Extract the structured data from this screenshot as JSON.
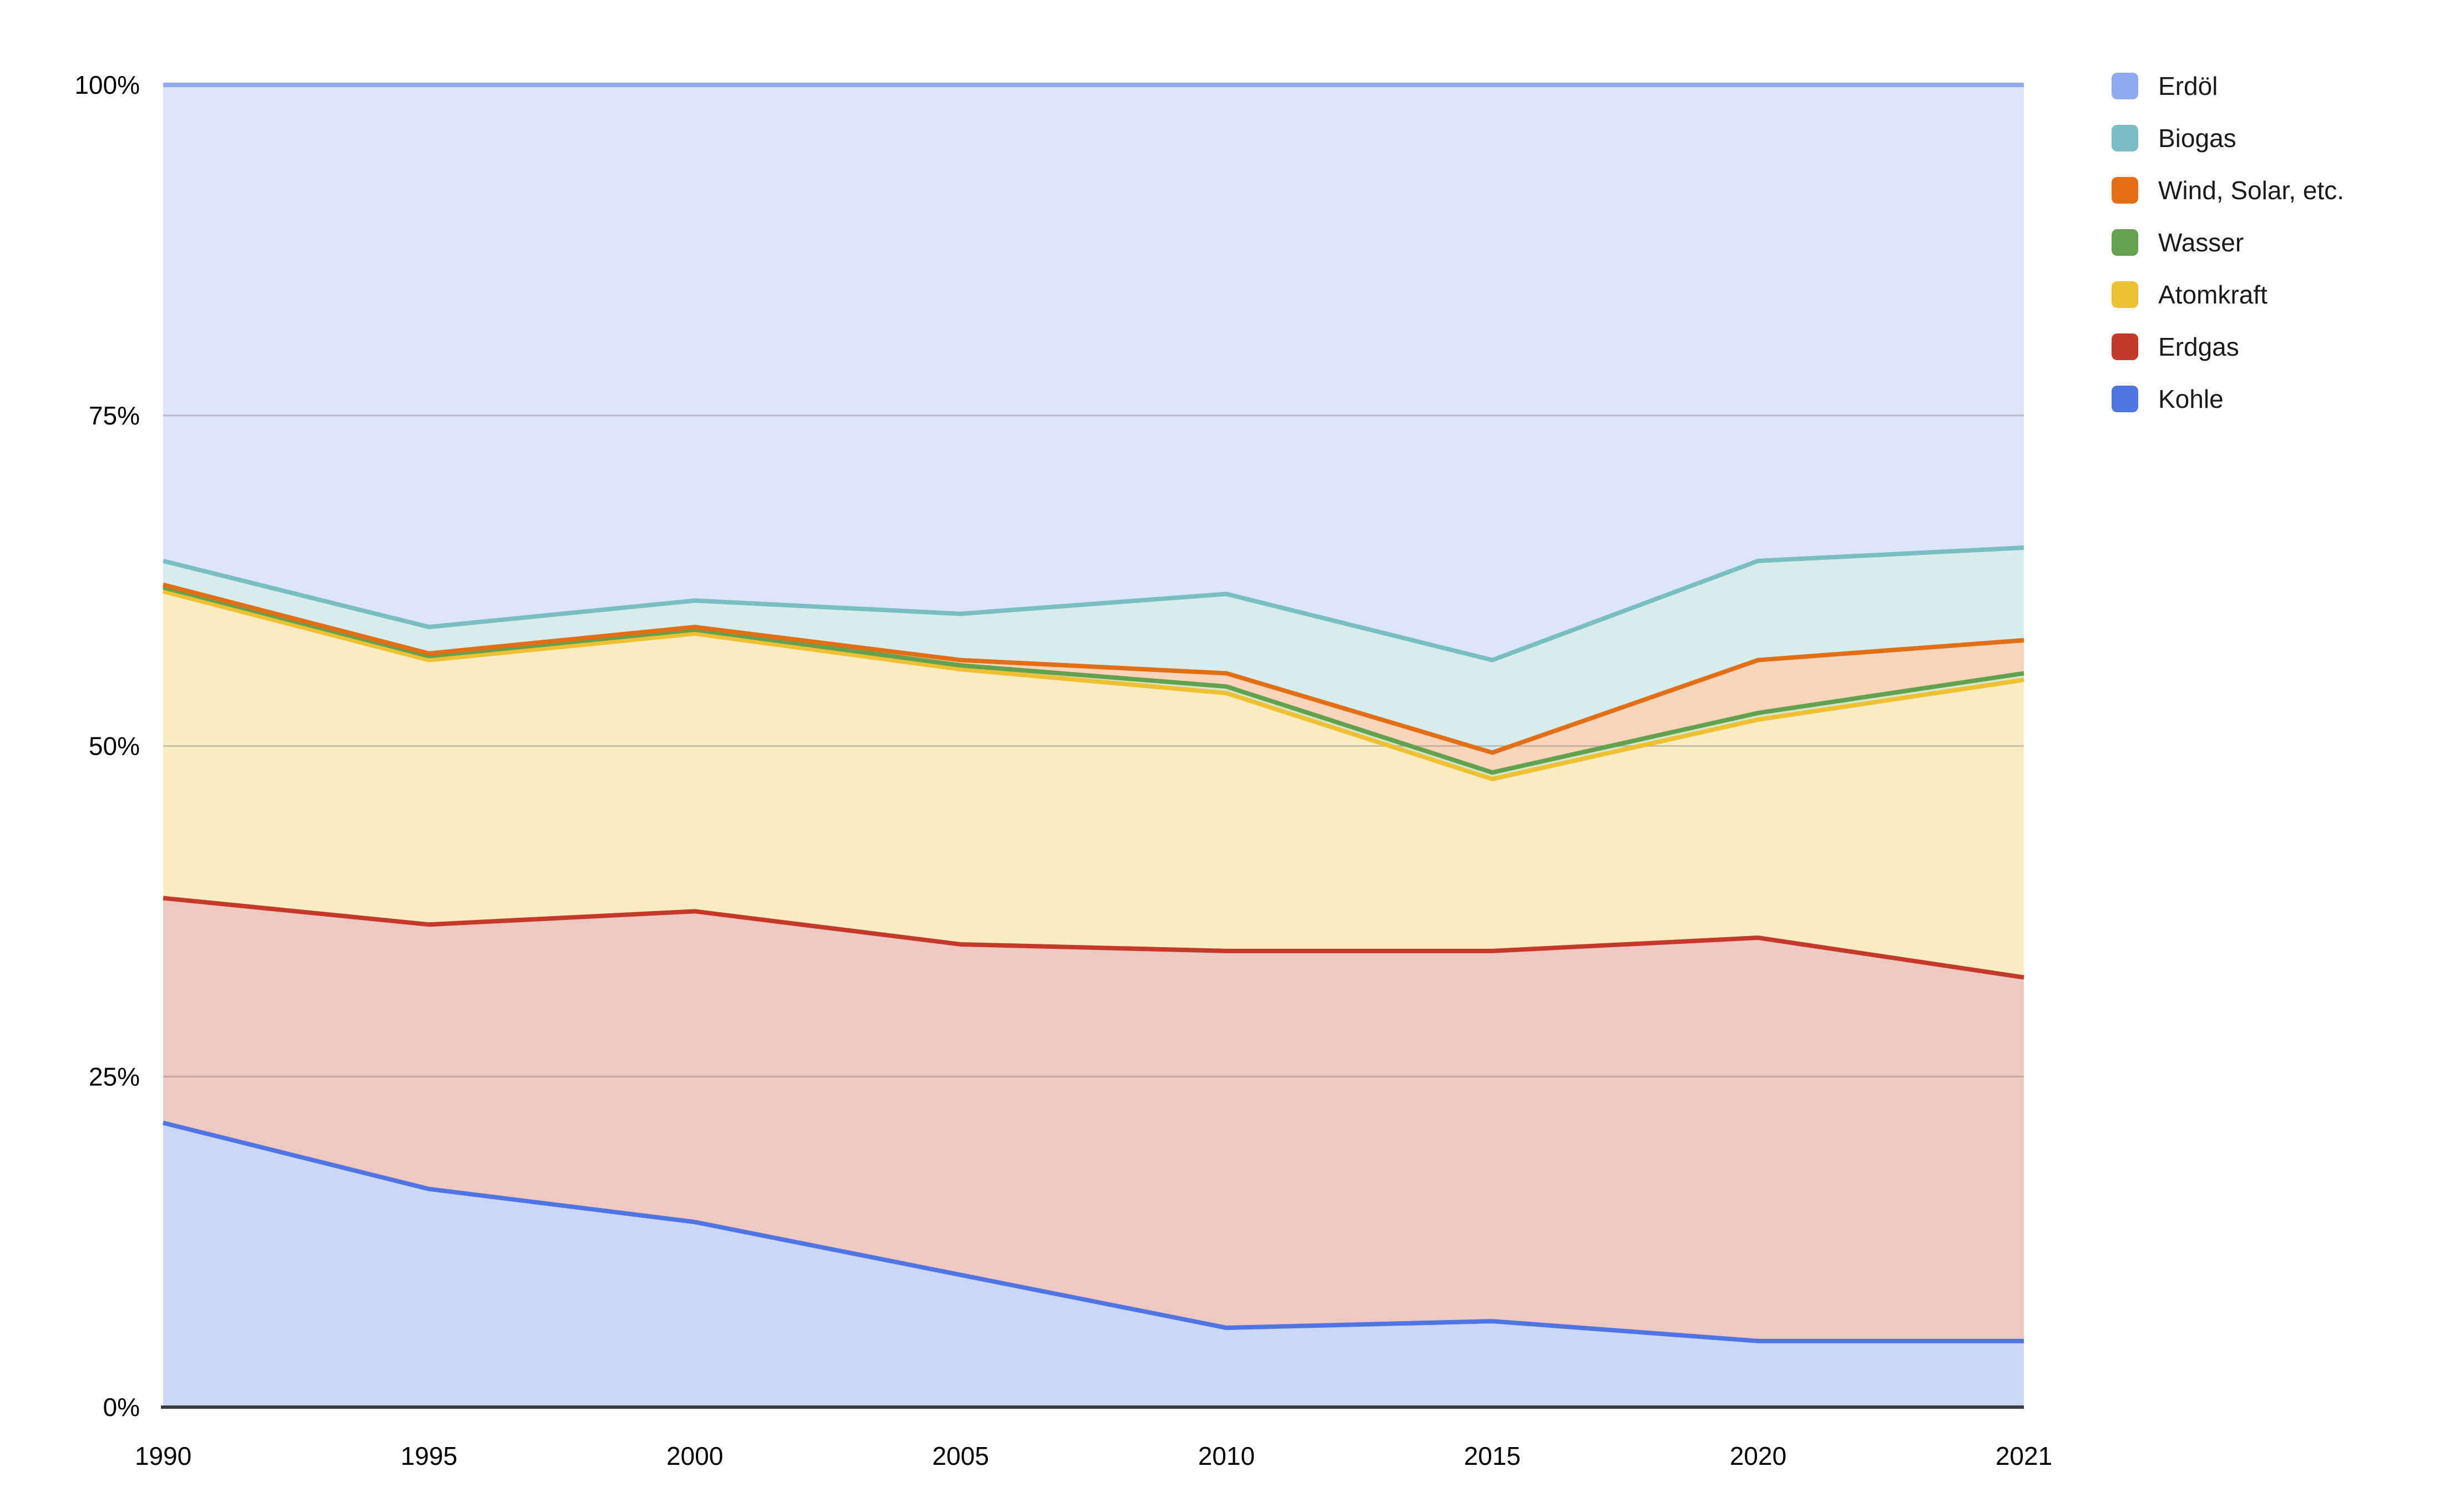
{
  "page": {
    "background": "#ffffff"
  },
  "chart_data": {
    "type": "area",
    "stacked": true,
    "percent_stacked": true,
    "title": "",
    "xlabel": "",
    "ylabel": "",
    "categories": [
      "1990",
      "1995",
      "2000",
      "2005",
      "2010",
      "2015",
      "2020",
      "2021"
    ],
    "x_axis": {
      "ordinal_spacing": true,
      "tick_labels": [
        "1990",
        "1995",
        "2000",
        "2005",
        "2010",
        "2015",
        "2020",
        "2021"
      ]
    },
    "y_axis": {
      "ylim": [
        0,
        100
      ],
      "tick_values": [
        0,
        25,
        50,
        75,
        100
      ],
      "tick_labels": [
        "0%",
        "25%",
        "50%",
        "75%",
        "100%"
      ],
      "gridlines": true,
      "gridline_color": "#828282"
    },
    "axis_line_color": "#3b3d42",
    "series": [
      {
        "id": "kohle",
        "name": "Kohle",
        "color": "#4f74e3",
        "fill": "#ccd7f8",
        "values": [
          21.5,
          16.5,
          14,
          10,
          6,
          6.5,
          5,
          5
        ]
      },
      {
        "id": "erdgas",
        "name": "Erdgas",
        "color": "#c5392b",
        "fill": "#efc8c2",
        "values": [
          17,
          20,
          23.5,
          25,
          28.5,
          28,
          30.5,
          27.5
        ]
      },
      {
        "id": "atomkraft",
        "name": "Atomkraft",
        "color": "#f0c033",
        "fill": "#faecc2",
        "values": [
          23.2,
          20,
          21,
          20.8,
          19.5,
          13,
          16.5,
          22.5
        ]
      },
      {
        "id": "wasser",
        "name": "Wasser",
        "color": "#62a14e",
        "fill": "#d4e6cc",
        "values": [
          0.3,
          0.3,
          0.3,
          0.3,
          0.5,
          0.5,
          0.5,
          0.5
        ]
      },
      {
        "id": "wind-solar-etc",
        "name": "Wind, Solar, etc.",
        "color": "#e26f15",
        "fill": "#f7d4ba",
        "values": [
          0.2,
          0.2,
          0.2,
          0.4,
          1,
          1.5,
          4,
          2.5
        ]
      },
      {
        "id": "biogas",
        "name": "Biogas",
        "color": "#79bec2",
        "fill": "#d7ecec",
        "values": [
          1.8,
          2,
          2,
          3.5,
          6,
          7,
          7.5,
          7
        ]
      },
      {
        "id": "erdoel",
        "name": "Erdöl",
        "color": "#8fa9f2",
        "fill": "#dde5fb",
        "values": [
          36,
          41,
          39,
          40,
          38.5,
          43.5,
          36,
          35
        ]
      }
    ],
    "legend": {
      "position": "right",
      "items": [
        {
          "id": "erdoel",
          "label": "Erdöl",
          "color": "#8fa9f2"
        },
        {
          "id": "biogas",
          "label": "Biogas",
          "color": "#79bec2"
        },
        {
          "id": "wind-solar-etc",
          "label": "Wind, Solar, etc.",
          "color": "#e26f15"
        },
        {
          "id": "wasser",
          "label": "Wasser",
          "color": "#62a14e"
        },
        {
          "id": "atomkraft",
          "label": "Atomkraft",
          "color": "#f0c033"
        },
        {
          "id": "erdgas",
          "label": "Erdgas",
          "color": "#c5392b"
        },
        {
          "id": "kohle",
          "label": "Kohle",
          "color": "#4f74e3"
        }
      ]
    }
  }
}
